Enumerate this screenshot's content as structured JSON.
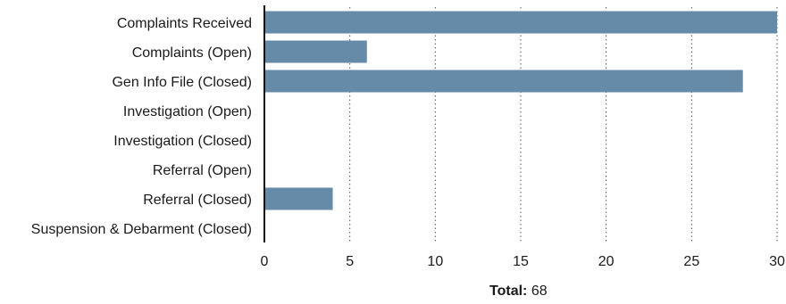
{
  "chart_data": {
    "type": "bar",
    "orientation": "horizontal",
    "categories": [
      "Complaints Received",
      "Complaints (Open)",
      "Gen Info File (Closed)",
      "Investigation (Open)",
      "Investigation (Closed)",
      "Referral (Open)",
      "Referral (Closed)",
      "Suspension & Debarment (Closed)"
    ],
    "values": [
      30,
      6,
      28,
      0,
      0,
      0,
      4,
      0
    ],
    "xlim": [
      0,
      30
    ],
    "xticks": [
      0,
      5,
      10,
      15,
      20,
      25,
      30
    ],
    "grid": "vertical dotted",
    "bar_color": "#668ba8"
  },
  "footer": {
    "total_label": "Total:",
    "total_value": "68"
  }
}
